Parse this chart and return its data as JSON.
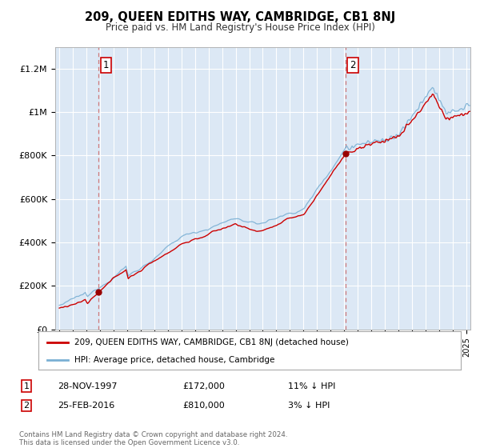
{
  "title": "209, QUEEN EDITHS WAY, CAMBRIDGE, CB1 8NJ",
  "subtitle": "Price paid vs. HM Land Registry's House Price Index (HPI)",
  "ylim": [
    0,
    1300000
  ],
  "xlim_start": 1994.7,
  "xlim_end": 2025.3,
  "sale1_date": 1997.91,
  "sale1_price": 172000,
  "sale2_date": 2016.12,
  "sale2_price": 810000,
  "line_color_red": "#cc0000",
  "line_color_blue": "#7ab0d4",
  "dashed_color": "#cc6666",
  "marker_color": "#990000",
  "background_color": "#ffffff",
  "plot_bg_color": "#dce8f5",
  "grid_color": "#ffffff",
  "legend_label_red": "209, QUEEN EDITHS WAY, CAMBRIDGE, CB1 8NJ (detached house)",
  "legend_label_blue": "HPI: Average price, detached house, Cambridge",
  "table_row1": [
    "1",
    "28-NOV-1997",
    "£172,000",
    "11% ↓ HPI"
  ],
  "table_row2": [
    "2",
    "25-FEB-2016",
    "£810,000",
    "3% ↓ HPI"
  ],
  "footer_text": "Contains HM Land Registry data © Crown copyright and database right 2024.\nThis data is licensed under the Open Government Licence v3.0.",
  "yticks": [
    0,
    200000,
    400000,
    600000,
    800000,
    1000000,
    1200000
  ],
  "ytick_labels": [
    "£0",
    "£200K",
    "£400K",
    "£600K",
    "£800K",
    "£1M",
    "£1.2M"
  ]
}
